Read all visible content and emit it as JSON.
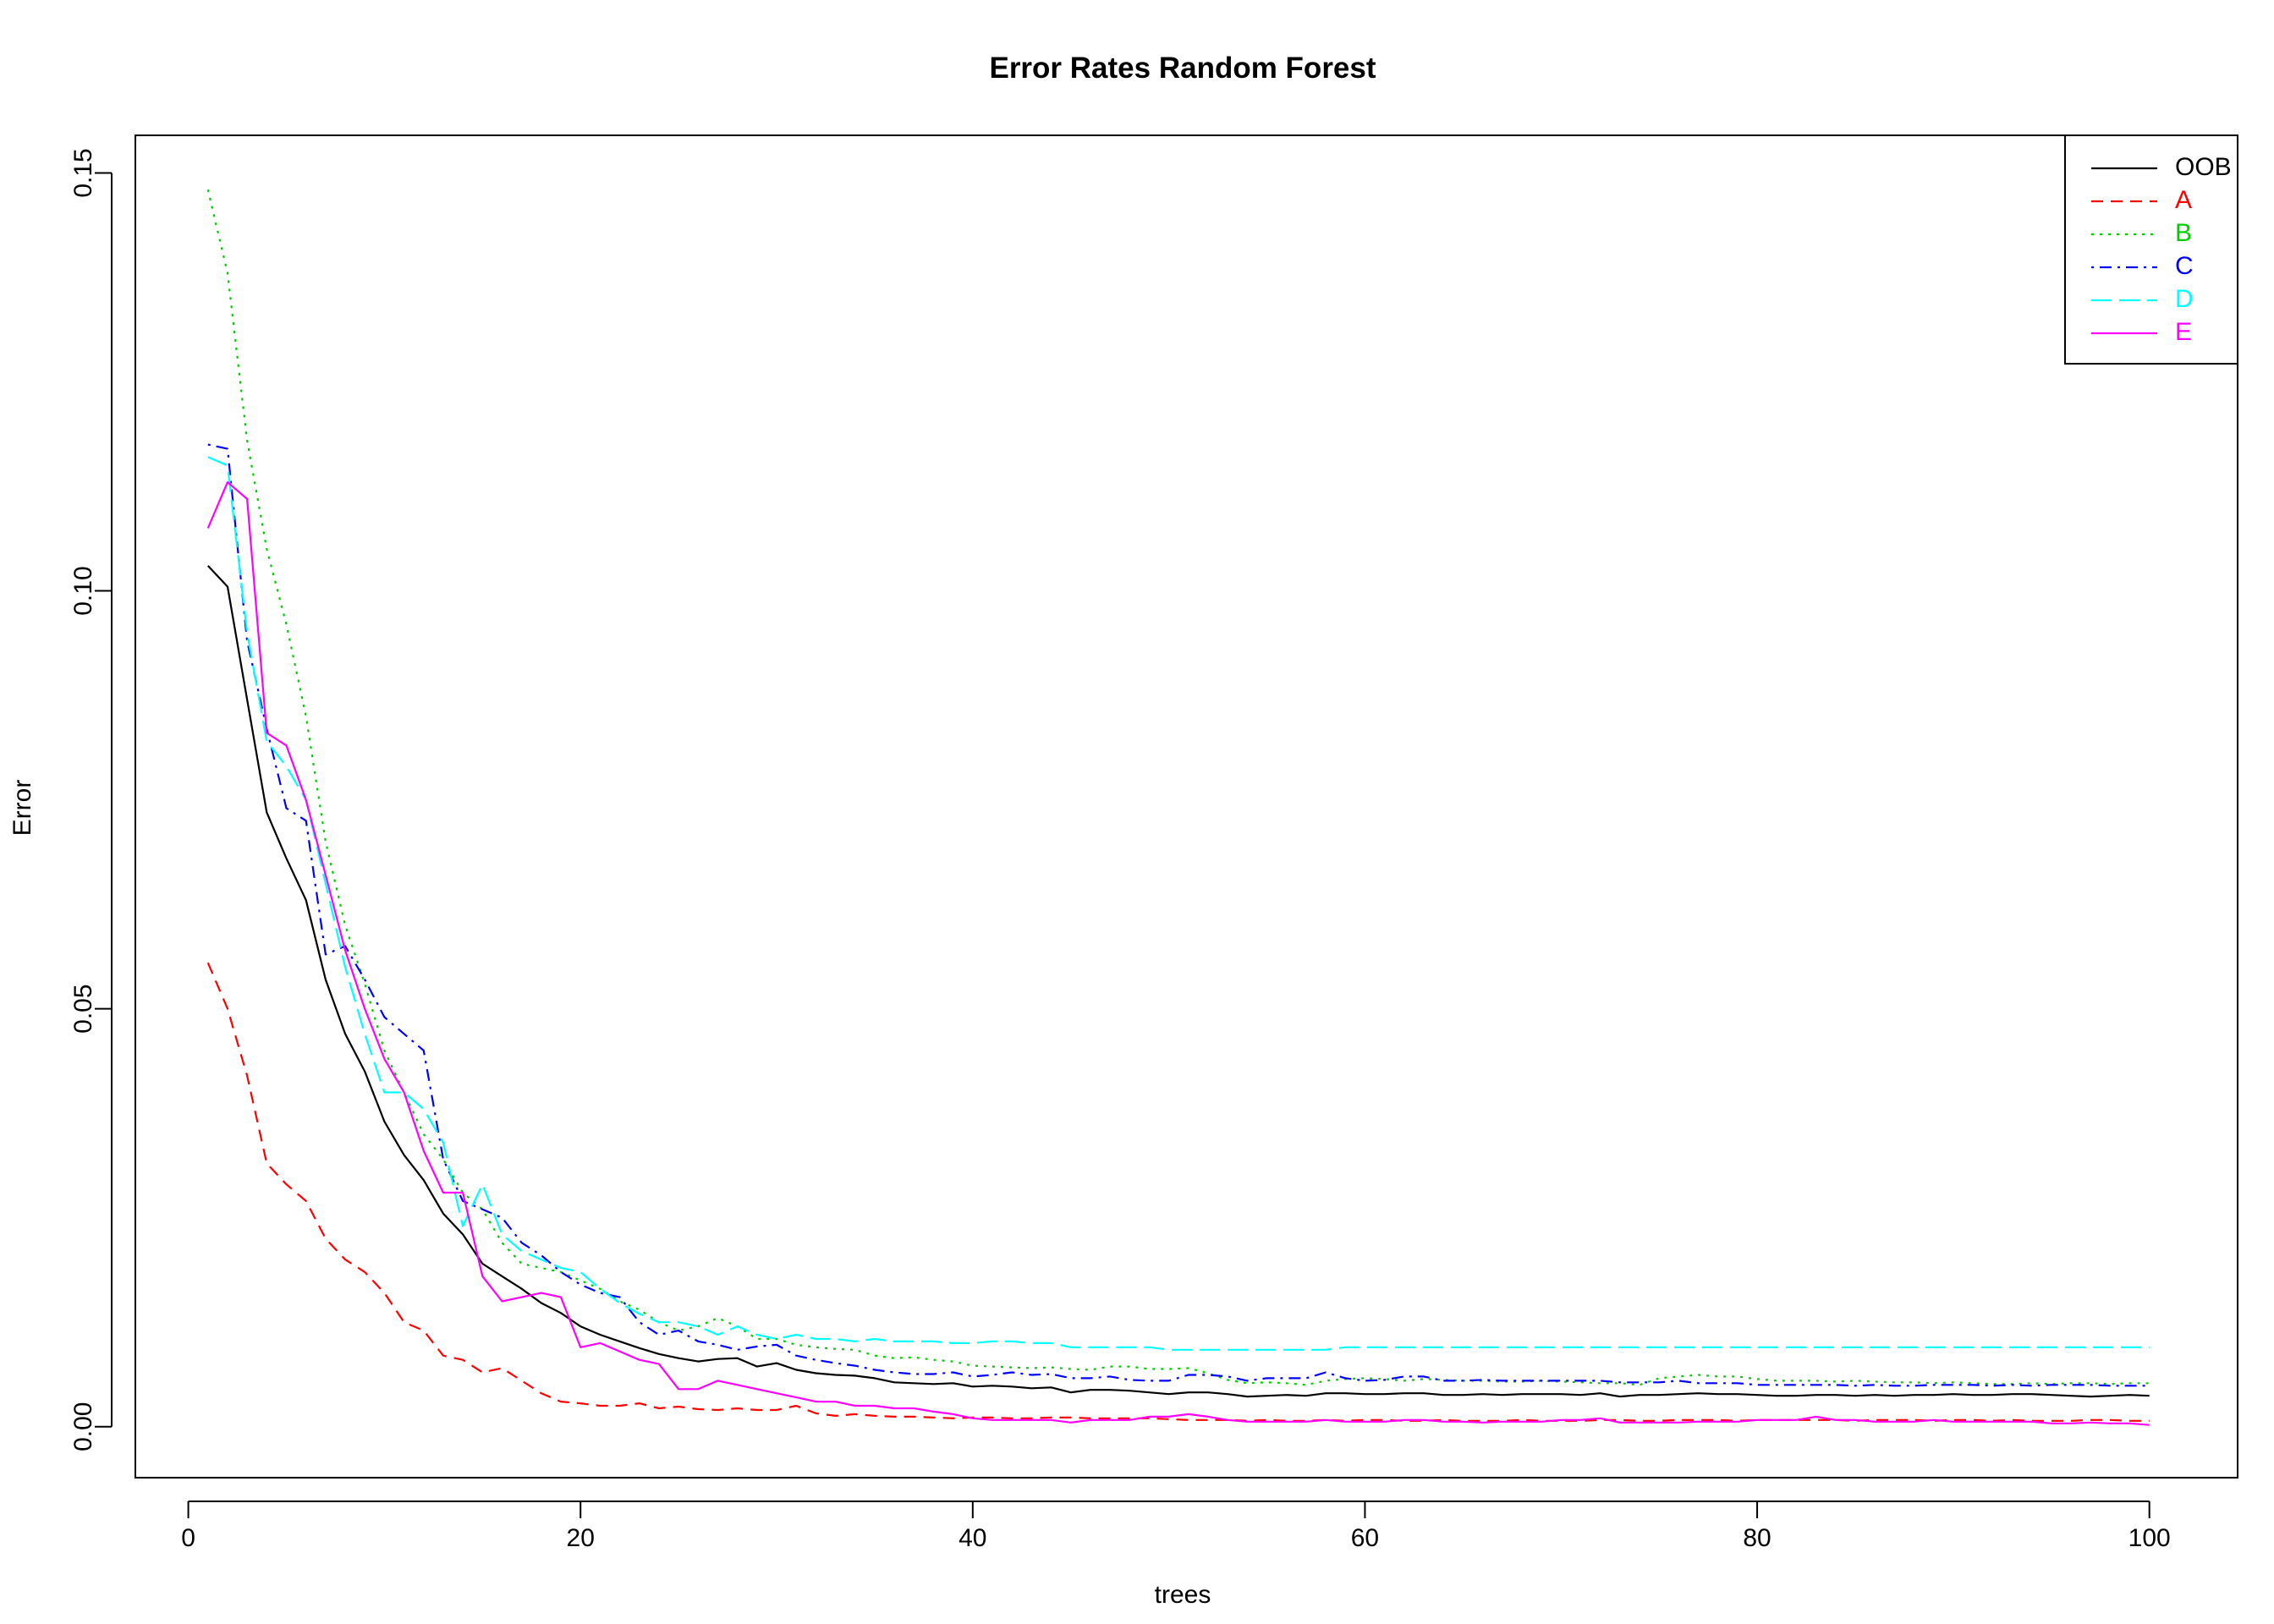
{
  "chart_data": {
    "type": "line",
    "title": "Error Rates Random Forest",
    "xlabel": "trees",
    "ylabel": "Error",
    "xlim": [
      -2.7,
      104.5
    ],
    "ylim": [
      -0.0061,
      0.1545
    ],
    "x_ticks": [
      0,
      20,
      40,
      60,
      80,
      100
    ],
    "x_tick_labels": [
      "0",
      "20",
      "40",
      "60",
      "80",
      "100"
    ],
    "y_ticks": [
      0.0,
      0.05,
      0.1,
      0.15
    ],
    "y_tick_labels": [
      "0.00",
      "0.05",
      "0.10",
      "0.15"
    ],
    "grid": false,
    "legend_position": "top-right",
    "x": [
      1,
      2,
      3,
      4,
      5,
      6,
      7,
      8,
      9,
      10,
      11,
      12,
      13,
      14,
      15,
      16,
      17,
      18,
      19,
      20,
      21,
      22,
      23,
      24,
      25,
      26,
      27,
      28,
      29,
      30,
      31,
      32,
      33,
      34,
      35,
      36,
      37,
      38,
      39,
      40,
      41,
      42,
      43,
      44,
      45,
      46,
      47,
      48,
      49,
      50,
      51,
      52,
      53,
      54,
      55,
      56,
      57,
      58,
      59,
      60,
      61,
      62,
      63,
      64,
      65,
      66,
      67,
      68,
      69,
      70,
      71,
      72,
      73,
      74,
      75,
      76,
      77,
      78,
      79,
      80,
      81,
      82,
      83,
      84,
      85,
      86,
      87,
      88,
      89,
      90,
      91,
      92,
      93,
      94,
      95,
      96,
      97,
      98,
      99,
      100
    ],
    "series": [
      {
        "name": "OOB",
        "color": "#000000",
        "dash": "solid",
        "values": [
          0.103,
          0.1005,
          0.087,
          0.0735,
          0.068,
          0.063,
          0.0535,
          0.047,
          0.0425,
          0.0365,
          0.0325,
          0.0295,
          0.0255,
          0.023,
          0.0195,
          0.018,
          0.0165,
          0.0148,
          0.0136,
          0.012,
          0.011,
          0.0102,
          0.0094,
          0.0087,
          0.0082,
          0.0078,
          0.0081,
          0.0082,
          0.0072,
          0.0076,
          0.0068,
          0.0064,
          0.0062,
          0.0061,
          0.0058,
          0.0053,
          0.0052,
          0.0051,
          0.0052,
          0.0048,
          0.0049,
          0.0048,
          0.0046,
          0.0047,
          0.0041,
          0.0044,
          0.0044,
          0.0043,
          0.0041,
          0.0039,
          0.0041,
          0.0041,
          0.0039,
          0.0036,
          0.0037,
          0.0038,
          0.0037,
          0.004,
          0.004,
          0.0039,
          0.0039,
          0.004,
          0.004,
          0.0038,
          0.0038,
          0.0039,
          0.0038,
          0.0039,
          0.0039,
          0.0039,
          0.0038,
          0.004,
          0.0036,
          0.0038,
          0.0038,
          0.0039,
          0.004,
          0.0039,
          0.0039,
          0.0038,
          0.0037,
          0.0037,
          0.0038,
          0.0038,
          0.0037,
          0.0038,
          0.0037,
          0.0038,
          0.0038,
          0.0039,
          0.0038,
          0.0038,
          0.0039,
          0.0039,
          0.0038,
          0.0037,
          0.0036,
          0.0037,
          0.0038,
          0.0037
        ]
      },
      {
        "name": "A",
        "color": "#ff0000",
        "dash": "dashed",
        "values": [
          0.0555,
          0.05,
          0.042,
          0.0315,
          0.029,
          0.027,
          0.0225,
          0.02,
          0.0185,
          0.016,
          0.0125,
          0.0115,
          0.0085,
          0.008,
          0.0065,
          0.007,
          0.0055,
          0.004,
          0.003,
          0.0028,
          0.0025,
          0.0025,
          0.0028,
          0.0022,
          0.0024,
          0.0021,
          0.002,
          0.0022,
          0.002,
          0.002,
          0.0025,
          0.0016,
          0.0013,
          0.0015,
          0.0013,
          0.0012,
          0.0012,
          0.0011,
          0.001,
          0.0011,
          0.0011,
          0.001,
          0.001,
          0.0011,
          0.0011,
          0.001,
          0.001,
          0.001,
          0.001,
          0.0009,
          0.0008,
          0.0008,
          0.0008,
          0.0007,
          0.0008,
          0.0007,
          0.0007,
          0.0008,
          0.0007,
          0.0008,
          0.0008,
          0.0007,
          0.0007,
          0.0008,
          0.0007,
          0.0007,
          0.0007,
          0.0008,
          0.0007,
          0.0007,
          0.0007,
          0.0008,
          0.0008,
          0.0007,
          0.0007,
          0.0008,
          0.0008,
          0.0008,
          0.0007,
          0.0008,
          0.0008,
          0.0008,
          0.0008,
          0.0008,
          0.0007,
          0.0008,
          0.0008,
          0.0008,
          0.0007,
          0.0008,
          0.0008,
          0.0007,
          0.0008,
          0.0007,
          0.0007,
          0.0007,
          0.0008,
          0.0008,
          0.0007,
          0.0007
        ]
      },
      {
        "name": "B",
        "color": "#00cd00",
        "dash": "dotted",
        "values": [
          0.148,
          0.138,
          0.118,
          0.105,
          0.096,
          0.085,
          0.07,
          0.06,
          0.053,
          0.045,
          0.04,
          0.035,
          0.032,
          0.028,
          0.026,
          0.022,
          0.0195,
          0.019,
          0.0185,
          0.0175,
          0.0165,
          0.015,
          0.014,
          0.0125,
          0.0115,
          0.012,
          0.013,
          0.012,
          0.0105,
          0.0105,
          0.0098,
          0.0095,
          0.0093,
          0.0092,
          0.0085,
          0.0082,
          0.0083,
          0.008,
          0.0078,
          0.0073,
          0.0072,
          0.0071,
          0.007,
          0.0071,
          0.0069,
          0.0068,
          0.0072,
          0.0072,
          0.0069,
          0.0069,
          0.007,
          0.0064,
          0.0056,
          0.0052,
          0.0053,
          0.0052,
          0.005,
          0.0055,
          0.0057,
          0.0058,
          0.0057,
          0.0055,
          0.0057,
          0.0056,
          0.0055,
          0.0055,
          0.0054,
          0.0054,
          0.0055,
          0.0054,
          0.0053,
          0.0052,
          0.0052,
          0.005,
          0.0058,
          0.006,
          0.0062,
          0.006,
          0.006,
          0.0057,
          0.0055,
          0.0055,
          0.0055,
          0.0054,
          0.0055,
          0.0054,
          0.0053,
          0.0053,
          0.0052,
          0.0053,
          0.0052,
          0.0051,
          0.0051,
          0.0052,
          0.0051,
          0.0052,
          0.0052,
          0.0051,
          0.0052,
          0.0052
        ]
      },
      {
        "name": "C",
        "color": "#0000ff",
        "dash": "dotdash",
        "values": [
          0.1175,
          0.117,
          0.094,
          0.0835,
          0.074,
          0.0725,
          0.0565,
          0.0575,
          0.0535,
          0.049,
          0.047,
          0.045,
          0.032,
          0.027,
          0.026,
          0.025,
          0.022,
          0.0205,
          0.0185,
          0.017,
          0.016,
          0.0155,
          0.0125,
          0.011,
          0.0115,
          0.0102,
          0.0098,
          0.0092,
          0.0096,
          0.0098,
          0.0085,
          0.008,
          0.0076,
          0.0073,
          0.0068,
          0.0065,
          0.0063,
          0.0063,
          0.0065,
          0.006,
          0.0062,
          0.0065,
          0.0062,
          0.0063,
          0.0058,
          0.0058,
          0.006,
          0.0056,
          0.0055,
          0.0055,
          0.0062,
          0.0062,
          0.006,
          0.0055,
          0.0058,
          0.0058,
          0.0058,
          0.0065,
          0.0058,
          0.0055,
          0.0056,
          0.006,
          0.006,
          0.0055,
          0.0055,
          0.0056,
          0.0055,
          0.0055,
          0.0055,
          0.0055,
          0.0055,
          0.0055,
          0.0053,
          0.0053,
          0.0053,
          0.0055,
          0.0052,
          0.0052,
          0.0052,
          0.005,
          0.005,
          0.005,
          0.005,
          0.005,
          0.0049,
          0.005,
          0.0049,
          0.0049,
          0.005,
          0.005,
          0.005,
          0.0049,
          0.005,
          0.0049,
          0.005,
          0.005,
          0.005,
          0.0049,
          0.0049,
          0.0049
        ]
      },
      {
        "name": "D",
        "color": "#00ffff",
        "dash": "longdash",
        "values": [
          0.116,
          0.115,
          0.095,
          0.082,
          0.079,
          0.075,
          0.065,
          0.055,
          0.047,
          0.04,
          0.04,
          0.038,
          0.034,
          0.024,
          0.029,
          0.023,
          0.021,
          0.02,
          0.019,
          0.0185,
          0.0165,
          0.0148,
          0.0135,
          0.0125,
          0.0125,
          0.012,
          0.011,
          0.012,
          0.011,
          0.0105,
          0.011,
          0.0105,
          0.0105,
          0.0102,
          0.0105,
          0.0102,
          0.0102,
          0.0102,
          0.01,
          0.01,
          0.0102,
          0.0102,
          0.01,
          0.01,
          0.0095,
          0.0095,
          0.0095,
          0.0095,
          0.0095,
          0.0092,
          0.0092,
          0.0092,
          0.0092,
          0.0092,
          0.0092,
          0.0092,
          0.0092,
          0.0092,
          0.0095,
          0.0095,
          0.0095,
          0.0095,
          0.0095,
          0.0095,
          0.0095,
          0.0095,
          0.0095,
          0.0095,
          0.0095,
          0.0095,
          0.0095,
          0.0095,
          0.0095,
          0.0095,
          0.0095,
          0.0095,
          0.0095,
          0.0095,
          0.0095,
          0.0095,
          0.0095,
          0.0095,
          0.0095,
          0.0095,
          0.0095,
          0.0095,
          0.0095,
          0.0095,
          0.0095,
          0.0095,
          0.0095,
          0.0095,
          0.0095,
          0.0095,
          0.0095,
          0.0095,
          0.0095,
          0.0095,
          0.0095,
          0.0095
        ]
      },
      {
        "name": "E",
        "color": "#ff00ff",
        "dash": "solid",
        "values": [
          0.1075,
          0.113,
          0.111,
          0.083,
          0.0815,
          0.075,
          0.066,
          0.057,
          0.05,
          0.044,
          0.04,
          0.033,
          0.028,
          0.028,
          0.018,
          0.015,
          0.0155,
          0.016,
          0.0155,
          0.0095,
          0.01,
          0.009,
          0.008,
          0.0075,
          0.0045,
          0.0045,
          0.0055,
          0.005,
          0.0045,
          0.004,
          0.0035,
          0.003,
          0.003,
          0.0025,
          0.0025,
          0.0022,
          0.0022,
          0.0018,
          0.0015,
          0.001,
          0.0008,
          0.0008,
          0.0008,
          0.0008,
          0.0005,
          0.0008,
          0.0008,
          0.0008,
          0.0012,
          0.0012,
          0.0015,
          0.0012,
          0.0008,
          0.0006,
          0.0006,
          0.0006,
          0.0006,
          0.0008,
          0.0006,
          0.0006,
          0.0006,
          0.0008,
          0.0008,
          0.0006,
          0.0006,
          0.0005,
          0.0006,
          0.0006,
          0.0006,
          0.0008,
          0.0008,
          0.001,
          0.0005,
          0.0005,
          0.0005,
          0.0005,
          0.0006,
          0.0006,
          0.0006,
          0.0008,
          0.0008,
          0.0008,
          0.0012,
          0.0008,
          0.0008,
          0.0006,
          0.0006,
          0.0006,
          0.0008,
          0.0006,
          0.0006,
          0.0006,
          0.0006,
          0.0006,
          0.0004,
          0.0004,
          0.0005,
          0.0004,
          0.0004,
          0.0002
        ]
      }
    ]
  }
}
